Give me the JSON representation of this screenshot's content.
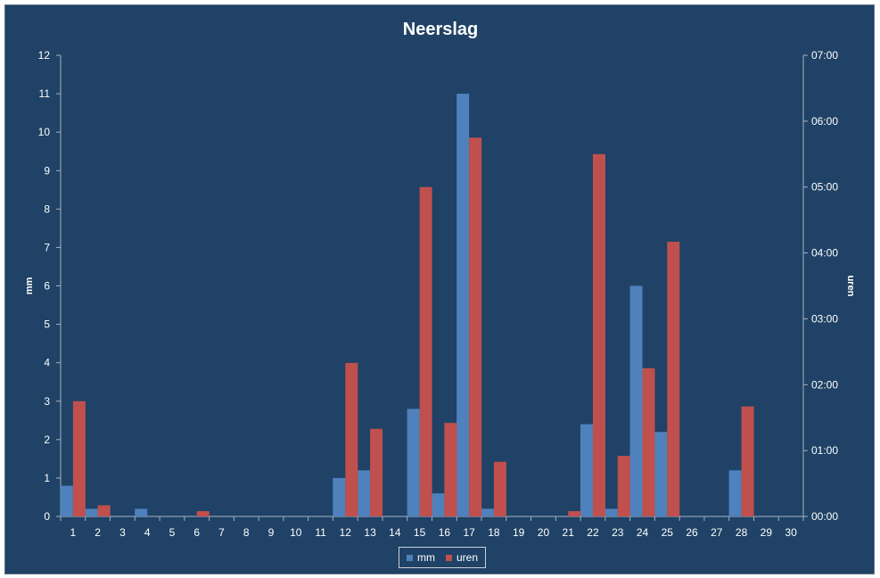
{
  "chart_data": {
    "type": "bar",
    "title": "Neerslag",
    "ylabel": "mm",
    "y2label": "uren",
    "categories": [
      "1",
      "2",
      "3",
      "4",
      "5",
      "6",
      "7",
      "8",
      "9",
      "10",
      "11",
      "12",
      "13",
      "14",
      "15",
      "16",
      "17",
      "18",
      "19",
      "20",
      "21",
      "22",
      "23",
      "24",
      "25",
      "26",
      "27",
      "28",
      "29",
      "30"
    ],
    "ylim": [
      0,
      12
    ],
    "yticks": [
      "0",
      "1",
      "2",
      "3",
      "4",
      "5",
      "6",
      "7",
      "8",
      "9",
      "10",
      "11",
      "12"
    ],
    "y2lim_hours": [
      0,
      7
    ],
    "y2ticks": [
      "00:00",
      "01:00",
      "02:00",
      "03:00",
      "04:00",
      "05:00",
      "06:00",
      "07:00"
    ],
    "series": [
      {
        "name": "mm",
        "axis": "left",
        "color": "#4f81bd",
        "values": [
          0.8,
          0.2,
          0,
          0.2,
          0,
          0,
          0,
          0,
          0,
          0,
          0,
          1.0,
          1.2,
          0,
          2.8,
          0.6,
          11.0,
          0.2,
          0,
          0,
          0,
          2.4,
          0.2,
          6.0,
          2.2,
          0,
          0,
          1.2,
          0,
          0
        ]
      },
      {
        "name": "uren",
        "axis": "right",
        "unit": "hours",
        "color": "#c0504d",
        "values": [
          1.75,
          0.17,
          0,
          0,
          0,
          0.08,
          0,
          0,
          0,
          0,
          0,
          2.33,
          1.33,
          0,
          5.0,
          1.42,
          5.75,
          0.83,
          0,
          0,
          0.08,
          5.5,
          0.92,
          2.25,
          4.17,
          0,
          0,
          1.67,
          0,
          0
        ]
      }
    ],
    "legend": {
      "position": "bottom",
      "entries": [
        "mm",
        "uren"
      ]
    },
    "grid": false
  }
}
